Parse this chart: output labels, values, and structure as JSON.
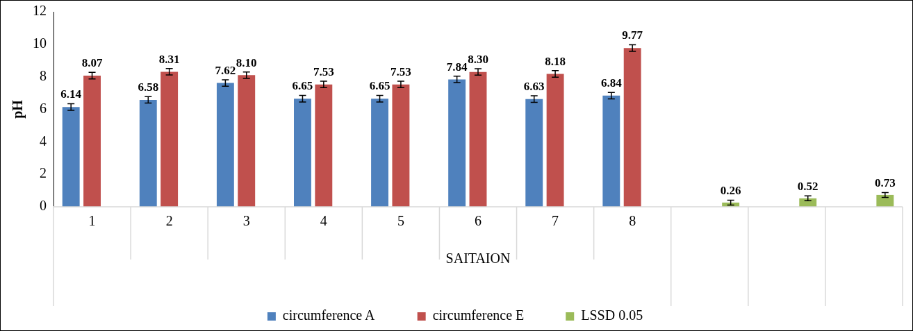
{
  "chart_data": {
    "type": "bar",
    "xlabel": "SAITAION",
    "ylabel": "pH",
    "categories": [
      "1",
      "2",
      "3",
      "4",
      "5",
      "6",
      "7",
      "8",
      null,
      null,
      null
    ],
    "series": [
      {
        "name": "circumference A",
        "color": "#4f81bd",
        "values": [
          6.14,
          6.58,
          7.62,
          6.65,
          6.65,
          7.84,
          6.63,
          6.84,
          null,
          null,
          null
        ],
        "errors": [
          0.2,
          0.2,
          0.2,
          0.2,
          0.2,
          0.2,
          0.2,
          0.2,
          null,
          null,
          null
        ],
        "value_labels": [
          "6.14",
          "6.58",
          "7.62",
          "6.65",
          "6.65",
          "7.84",
          "6.63",
          "6.84",
          null,
          null,
          null
        ]
      },
      {
        "name": "circumference E",
        "color": "#c0504d",
        "values": [
          8.07,
          8.31,
          8.1,
          7.53,
          7.53,
          8.3,
          8.18,
          9.77,
          null,
          null,
          null
        ],
        "errors": [
          0.2,
          0.2,
          0.2,
          0.2,
          0.2,
          0.2,
          0.2,
          0.2,
          null,
          null,
          null
        ],
        "value_labels": [
          "8.07",
          "8.31",
          "8.10",
          "7.53",
          "7.53",
          "8.30",
          "8.18",
          "9.77",
          null,
          null,
          null
        ]
      },
      {
        "name": "LSSD 0.05",
        "color": "#9bbb59",
        "values": [
          null,
          null,
          null,
          null,
          null,
          null,
          null,
          null,
          0.26,
          0.52,
          0.73
        ],
        "errors": [
          null,
          null,
          null,
          null,
          null,
          null,
          null,
          null,
          0.15,
          0.15,
          0.15
        ],
        "value_labels": [
          null,
          null,
          null,
          null,
          null,
          null,
          null,
          null,
          "0.26",
          "0.52",
          "0.73"
        ]
      }
    ],
    "ylim": [
      0,
      12
    ],
    "yticks": [
      0,
      2,
      4,
      6,
      8,
      10,
      12
    ],
    "grid": false,
    "legend": "bottom"
  }
}
